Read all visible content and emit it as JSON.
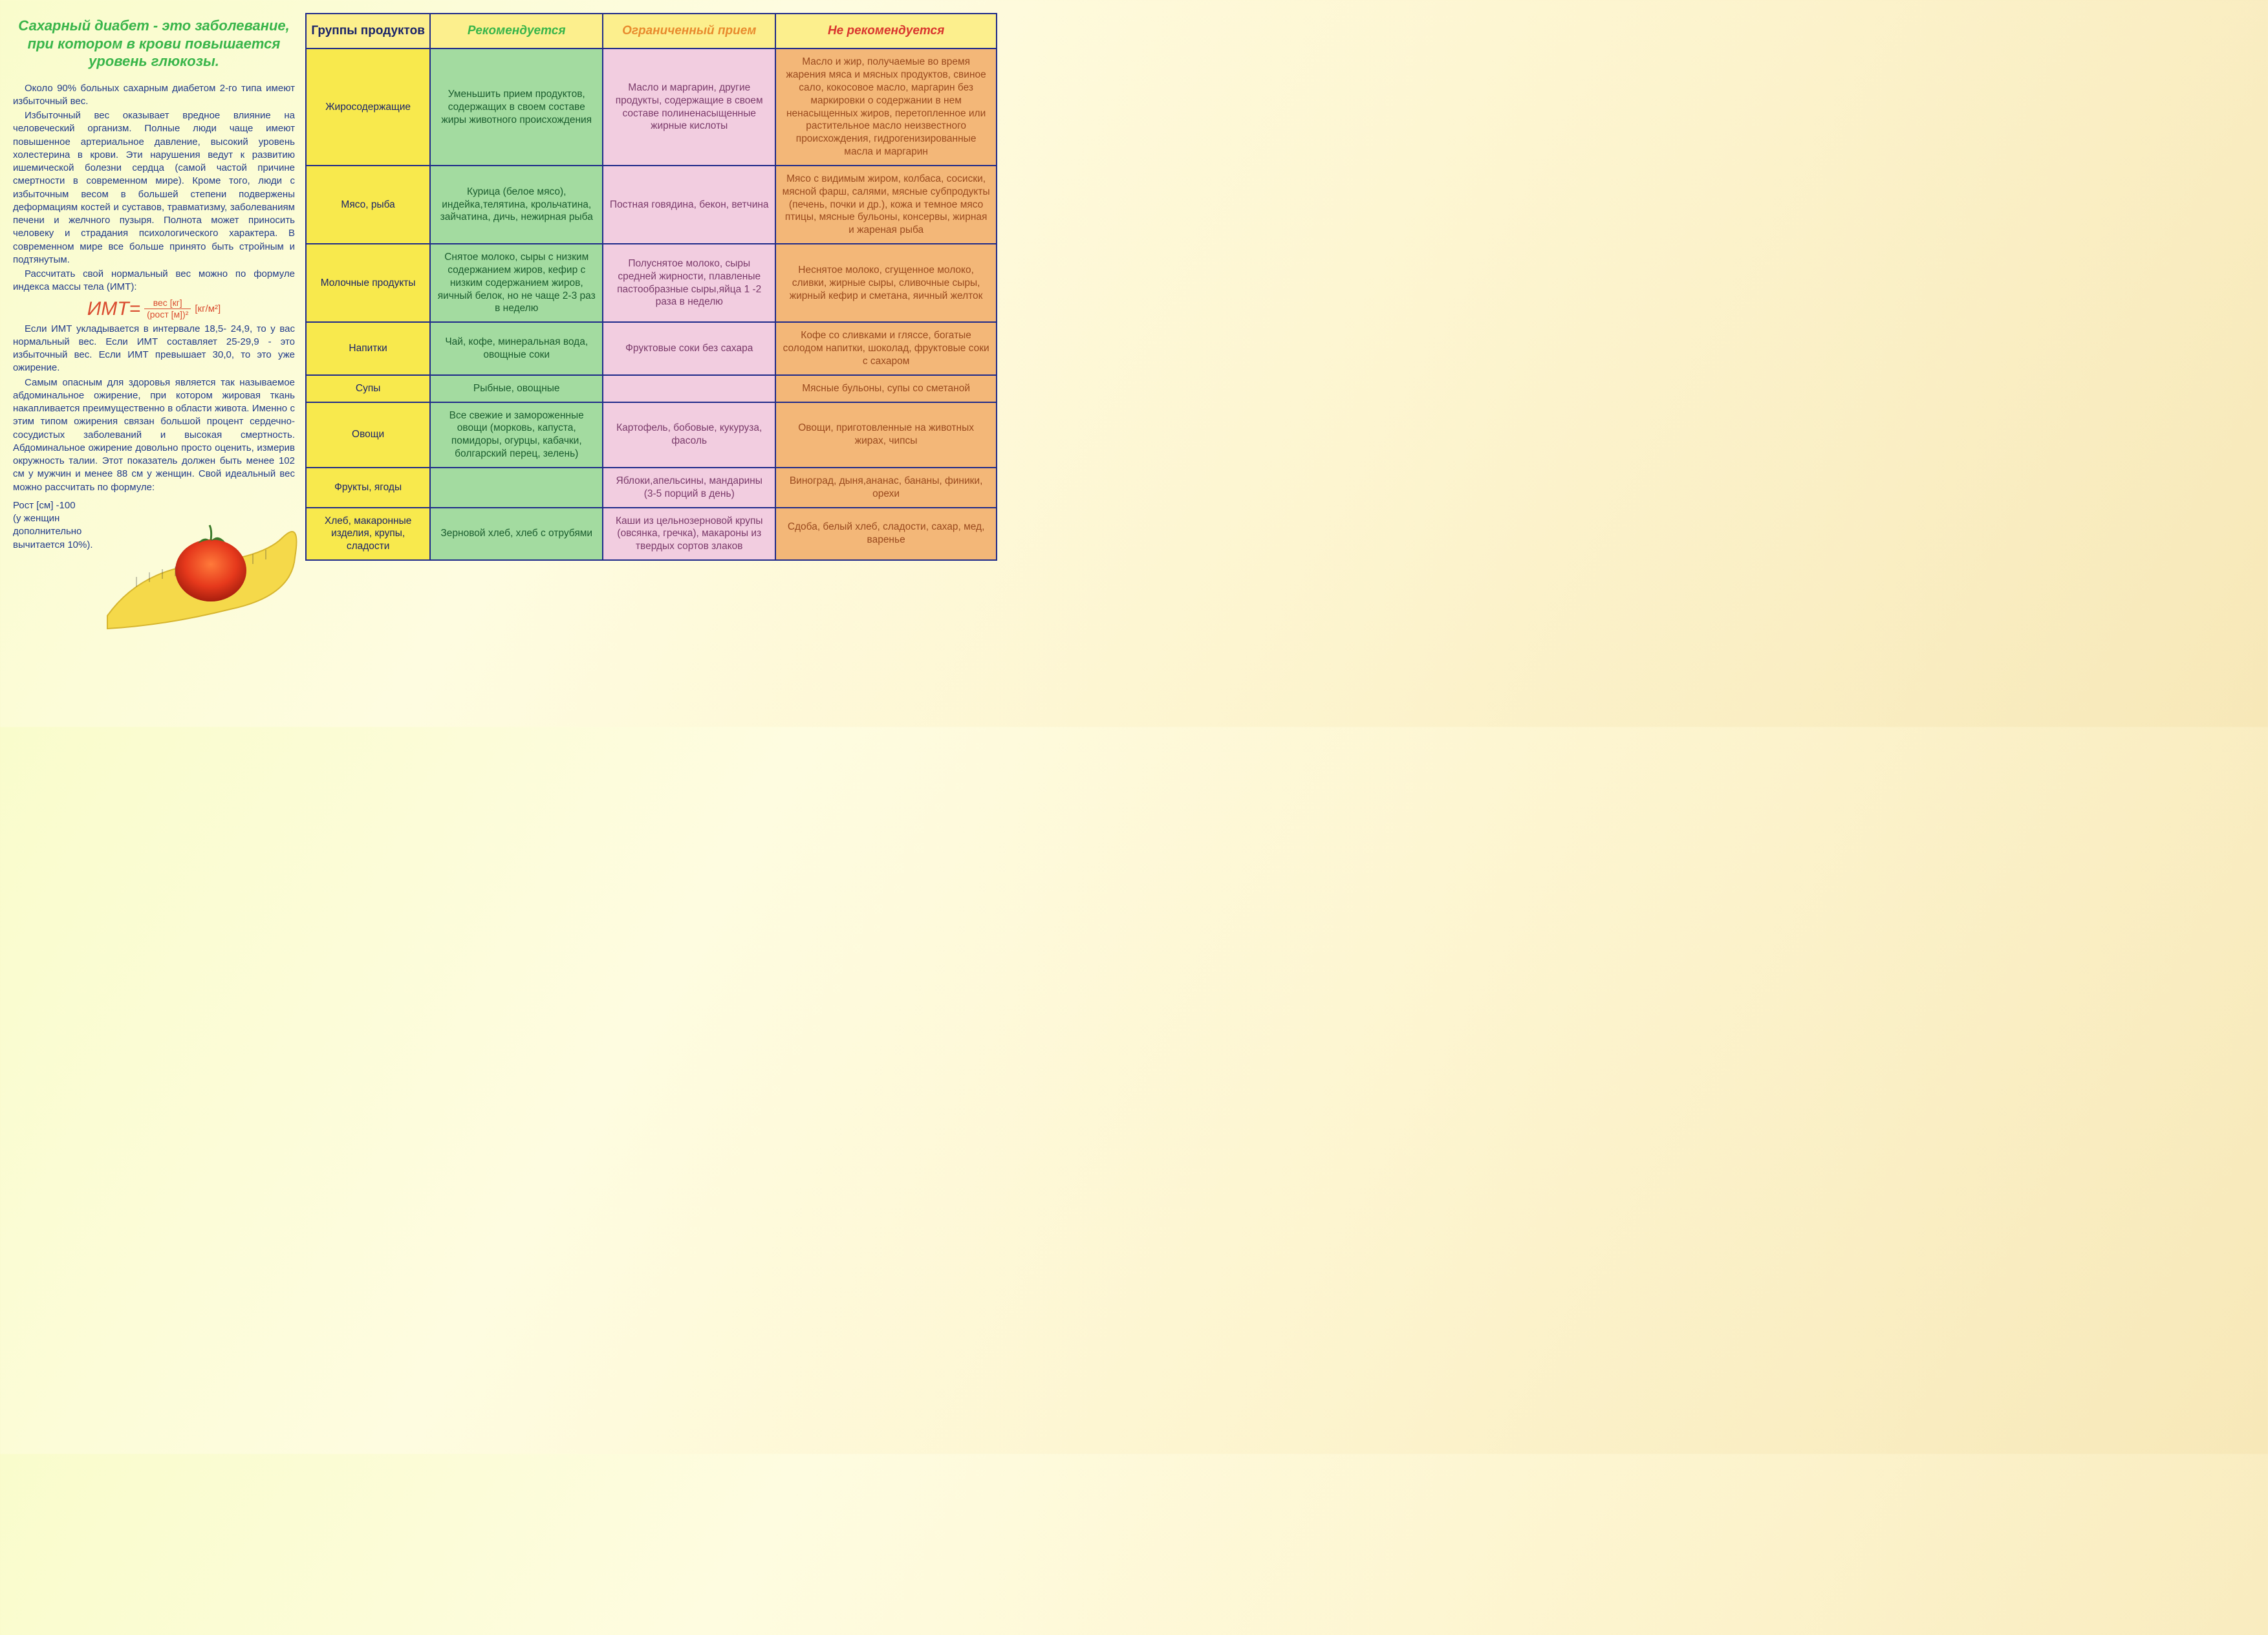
{
  "colors": {
    "tableBorder": "#1e2a8a",
    "textBody": "#213b8a",
    "titleGreen": "#39b54a",
    "formulaRed": "#d94b2f",
    "hdrGroups": {
      "bg": "#fcef8d",
      "fg": "#1a2369"
    },
    "hdrRec": {
      "bg": "#fcef8d",
      "fg": "#39b54a"
    },
    "hdrLim": {
      "bg": "#fcef8d",
      "fg": "#e88b2e"
    },
    "hdrNot": {
      "bg": "#fcef8d",
      "fg": "#d9362f"
    },
    "colGroups": {
      "bg": "#f8e94d",
      "fg": "#1a2369"
    },
    "colRec": {
      "bg": "#a3dba0",
      "fg": "#1a5c2e"
    },
    "colLim": {
      "bg": "#f2cde0",
      "fg": "#7a3a6a"
    },
    "colNot": {
      "bg": "#f3b778",
      "fg": "#9a4a1e"
    }
  },
  "left": {
    "title": "Сахарный диабет - это заболевание, при котором в крови повышается уровень глюкозы.",
    "p1": "Около 90% больных сахарным диабетом 2-го типа имеют избыточный вес.",
    "p2": "Избыточный вес оказывает вредное влияние на человеческий организм. Полные люди чаще имеют повышенное артериальное давление, высокий уровень холестерина в крови. Эти нарушения ведут к развитию ишемической болезни сердца (самой частой причине смертности в современном мире). Кроме того, люди с избыточным весом в большей степени подвержены деформациям костей и суставов, травматизму, заболеваниям печени и желчного пузыря. Полнота может приносить человеку и страдания психологического характера. В современном мире все больше принято быть стройным и подтянутым.",
    "p3": "Рассчитать свой нормальный вес можно по формуле индекса массы тела (ИМТ):",
    "formula": {
      "lhs": "ИМТ=",
      "num": "вес [кг]",
      "den": "(рост [м])²",
      "unit": "[кг/м²]"
    },
    "p4": "Если ИМТ укладывается в интервале 18,5- 24,9, то у вас нормальный вес. Если ИМТ составляет 25-29,9 - это избыточный вес. Если ИМТ превышает 30,0, то это уже ожирение.",
    "p5": "Самым опасным для здоровья является так называемое абдоминальное ожирение, при котором жировая ткань накапливается преимущественно в области живота. Именно с этим типом ожирения связан большой процент сердечно-сосудистых заболеваний и высокая смертность. Абдоминальное ожирение довольно просто оценить, измерив окружность талии. Этот показатель должен быть менее 102 см у мужчин и менее 88 см у женщин. Свой идеальный вес можно рассчитать по формуле:",
    "foot": "Рост [см] -100\n(у женщин\nдополнительно\nвычитается 10%)."
  },
  "table": {
    "headers": [
      "Группы продуктов",
      "Рекомендуется",
      "Ограниченный прием",
      "Не рекомендуется"
    ],
    "rows": [
      [
        "Жиросодержащие",
        "Уменьшить прием продуктов, содержащих в своем составе жиры животного происхождения",
        "Масло и маргарин, другие продукты, содержащие в своем составе полиненасыщенные жирные кислоты",
        "Масло и жир, получаемые во время жарения мяса и мясных продуктов, свиное сало, кокосовое масло, маргарин без маркировки о содержании в нем ненасыщенных жиров, перетопленное или растительное масло неизвестного происхождения, гидрогенизированные масла и маргарин"
      ],
      [
        "Мясо, рыба",
        "Курица (белое мясо), индейка,телятина, крольчатина, зайчатина, дичь, нежирная рыба",
        "Постная говядина, бекон, ветчина",
        "Мясо с видимым жиром, колбаса, сосиски, мясной фарш, салями, мясные субпродукты (печень, почки и др.), кожа и темное мясо птицы, мясные бульоны, консервы, жирная и жареная рыба"
      ],
      [
        "Молочные продукты",
        "Снятое молоко, сыры с низким содержанием жиров, кефир с низким содержанием жиров, яичный белок, но не чаще 2-3 раз в неделю",
        "Полуснятое молоко, сыры средней жирности, плавленые пастообразные сыры,яйца 1 -2 раза в неделю",
        "Неснятое молоко, сгущенное молоко, сливки, жирные сыры, сливочные сыры, жирный кефир и сметана, яичный желток"
      ],
      [
        "Напитки",
        "Чай, кофе, минеральная вода, овощные соки",
        "Фруктовые соки без сахара",
        "Кофе со сливками и гляссе, богатые солодом напитки, шоколад, фруктовые соки с сахаром"
      ],
      [
        "Супы",
        "Рыбные, овощные",
        "",
        "Мясные бульоны, супы со сметаной"
      ],
      [
        "Овощи",
        "Все свежие и замороженные овощи (морковь, капуста, помидоры, огурцы, кабачки, болгарский перец, зелень)",
        "Картофель, бобовые, кукуруза, фасоль",
        "Овощи, приготовленные на животных жирах, чипсы"
      ],
      [
        "Фрукты, ягоды",
        "",
        "Яблоки,апельсины, мандарины (3-5 порций в день)",
        "Виноград, дыня,ананас, бананы, финики, орехи"
      ],
      [
        "Хлеб, макаронные изделия, крупы, сладости",
        "Зерновой хлеб, хлеб с отрубями",
        "Каши из цельнозерновой крупы (овсянка, гречка), макароны из твердых сортов злаков",
        "Сдоба, белый хлеб, сладости, сахар, мед, варенье"
      ]
    ]
  }
}
